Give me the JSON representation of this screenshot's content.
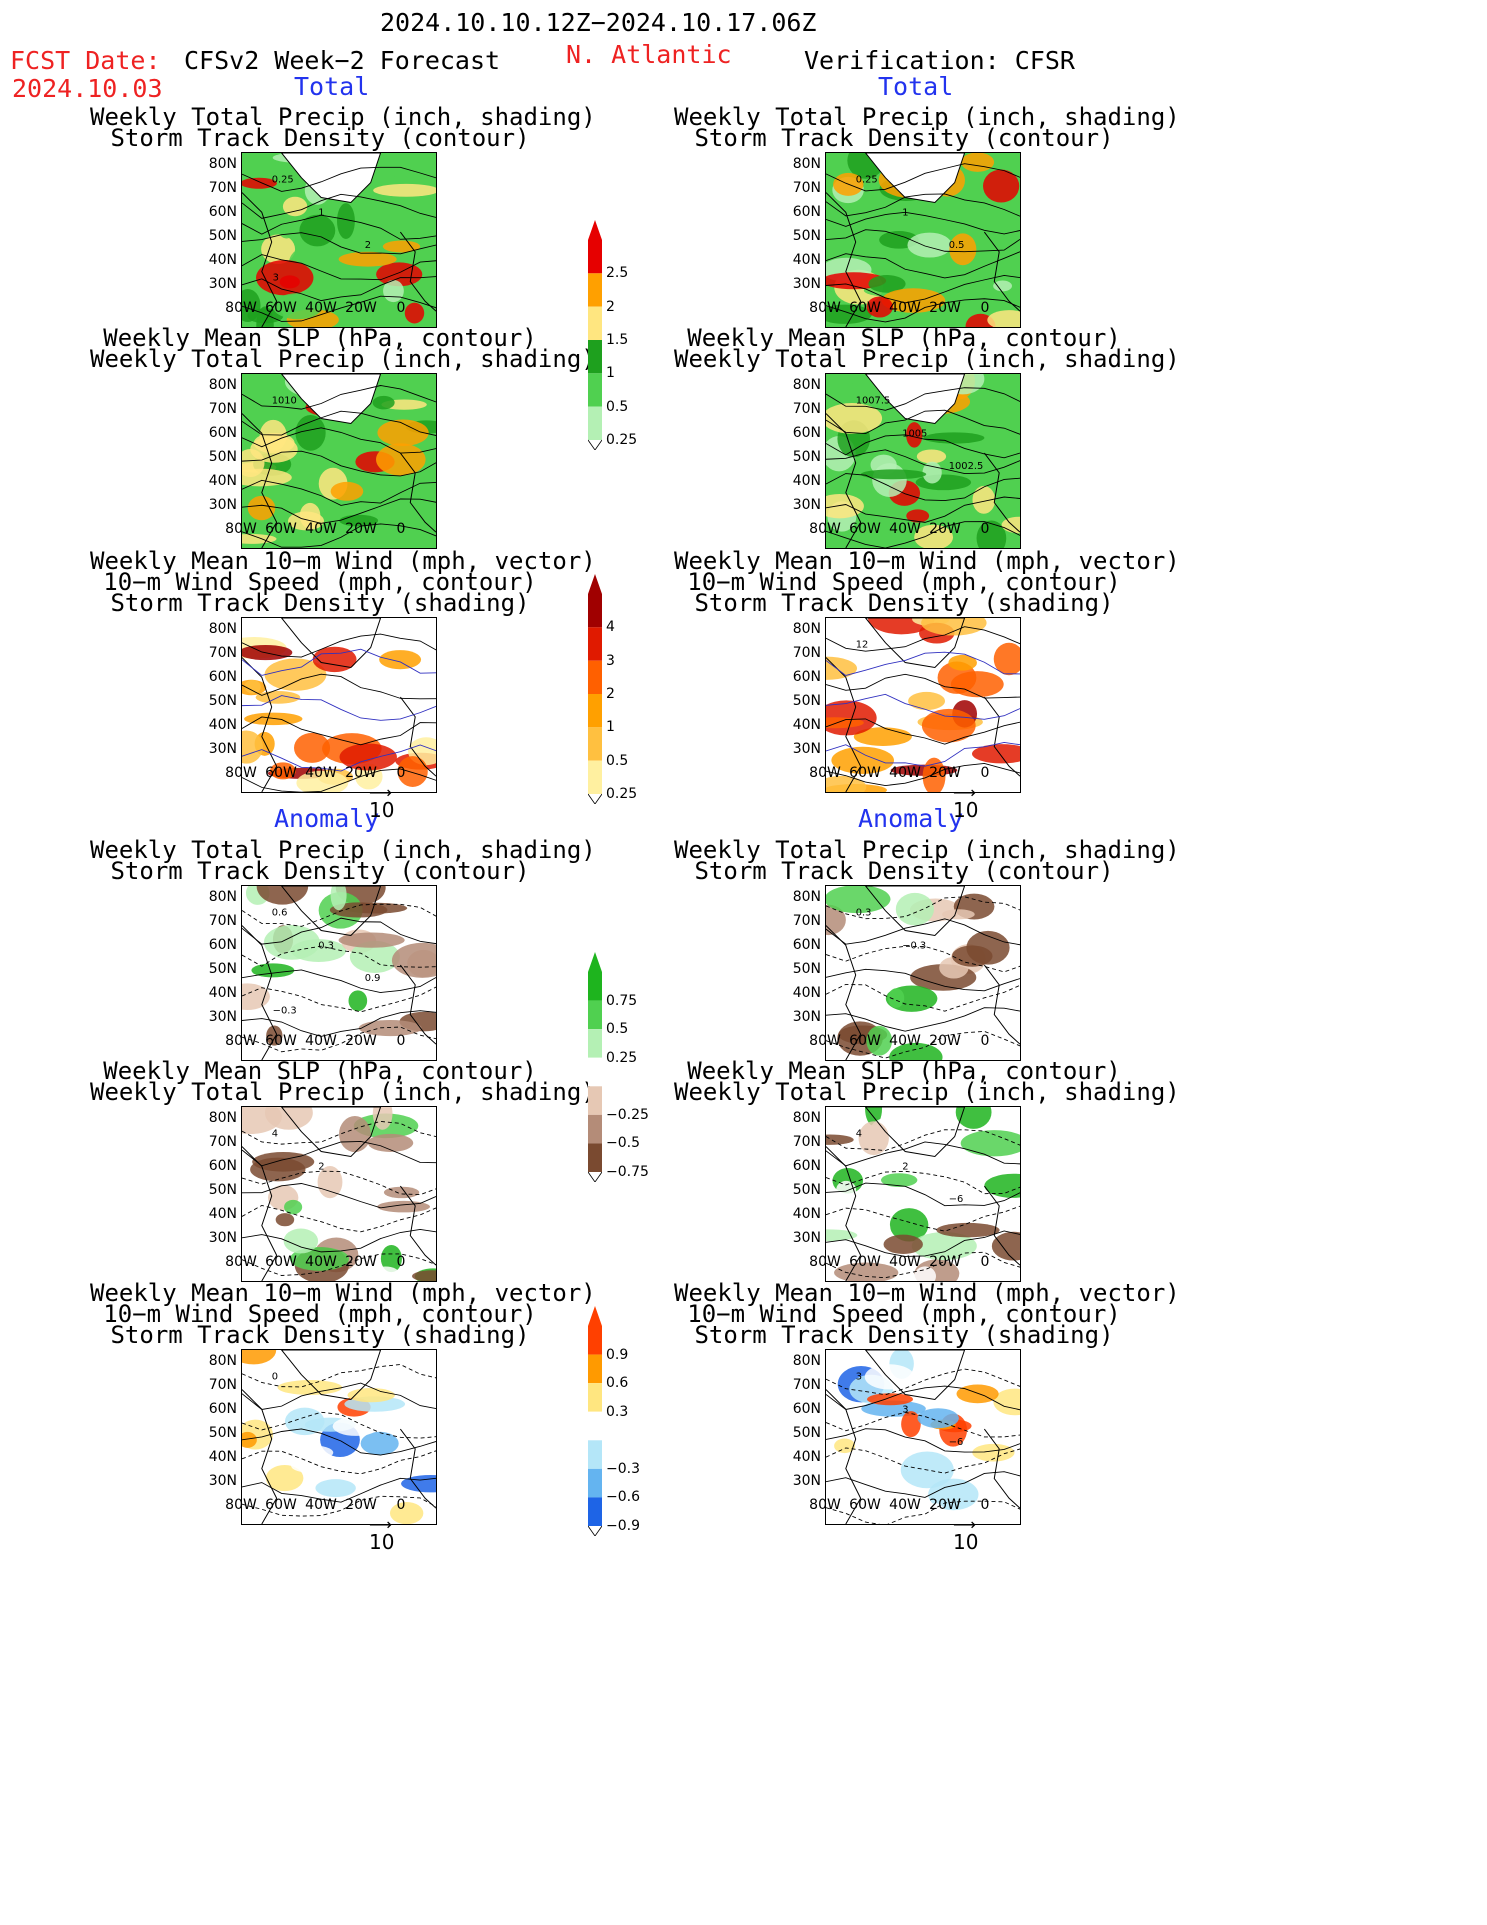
{
  "header": {
    "date_range": "2024.10.10.12Z−2024.10.17.06Z",
    "fcst_label": "FCST Date:",
    "fcst_date": "2024.10.03",
    "forecast_title": "CFSv2 Week−2 Forecast",
    "region": "N. Atlantic",
    "verification": "Verification: CFSR"
  },
  "sections": {
    "total": "Total",
    "anomaly": "Anomaly"
  },
  "panel_titles": {
    "precip_track": [
      "Weekly Total Precip (inch, shading)",
      "Storm Track Density (contour)"
    ],
    "slp_precip": [
      "Weekly Mean SLP (hPa, contour)",
      "Weekly Total Precip (inch, shading)"
    ],
    "wind": [
      "Weekly Mean 10−m Wind (mph, vector)",
      "10−m Wind Speed (mph, contour)",
      "Storm Track Density (shading)"
    ]
  },
  "axes": {
    "lat_ticks": [
      "80N",
      "70N",
      "60N",
      "50N",
      "40N",
      "30N"
    ],
    "lon_ticks": [
      "80W",
      "60W",
      "40W",
      "20W",
      "0"
    ]
  },
  "vector_ref": "10",
  "contour_labels": {
    "fc_precip_track": [
      "0.25",
      "1",
      "2",
      "3"
    ],
    "ver_precip_track": [
      "0.25",
      "1",
      "0.5"
    ],
    "fc_slp": [
      "1010"
    ],
    "ver_slp": [
      "1007.5",
      "1005",
      "1002.5"
    ],
    "ver_wind": [
      "12"
    ],
    "fc_anom_track": [
      "0.6",
      "0.3",
      "0.9",
      "−0.3"
    ],
    "ver_anom_track": [
      "0.3",
      "−0.3"
    ],
    "fc_anom_slp": [
      "4",
      "2"
    ],
    "ver_anom_slp": [
      "4",
      "2",
      "−6"
    ],
    "fc_anom_wind": [
      "0"
    ],
    "ver_anom_wind": [
      "3",
      "3",
      "−6"
    ]
  },
  "colorbars": {
    "precip": {
      "labels": [
        "2.5",
        "2",
        "1.5",
        "1",
        "0.5",
        "0.25"
      ],
      "colors": [
        "#e60000",
        "#ffa000",
        "#ffe680",
        "#1ea01e",
        "#50d050",
        "#b4f0b4"
      ]
    },
    "track": {
      "labels": [
        "4",
        "3",
        "2",
        "1",
        "0.5",
        "0.25"
      ],
      "colors": [
        "#a00000",
        "#e01a00",
        "#ff6000",
        "#ffa000",
        "#ffc040",
        "#fff0a0"
      ]
    },
    "precip_anom": {
      "labels": [
        "0.75",
        "0.5",
        "0.25",
        "−0.25",
        "−0.5",
        "−0.75"
      ],
      "colors": [
        "#1eb41e",
        "#50d050",
        "#b4f0b4",
        "#ffffff",
        "#e6c8b4",
        "#b48c78",
        "#7a4a30"
      ]
    },
    "track_anom": {
      "labels": [
        "0.9",
        "0.6",
        "0.3",
        "−0.3",
        "−0.6",
        "−0.9"
      ],
      "colors": [
        "#ff4000",
        "#ff9a00",
        "#ffe680",
        "#ffffff",
        "#b4e6f8",
        "#64b4f0",
        "#1e64e6"
      ]
    }
  }
}
